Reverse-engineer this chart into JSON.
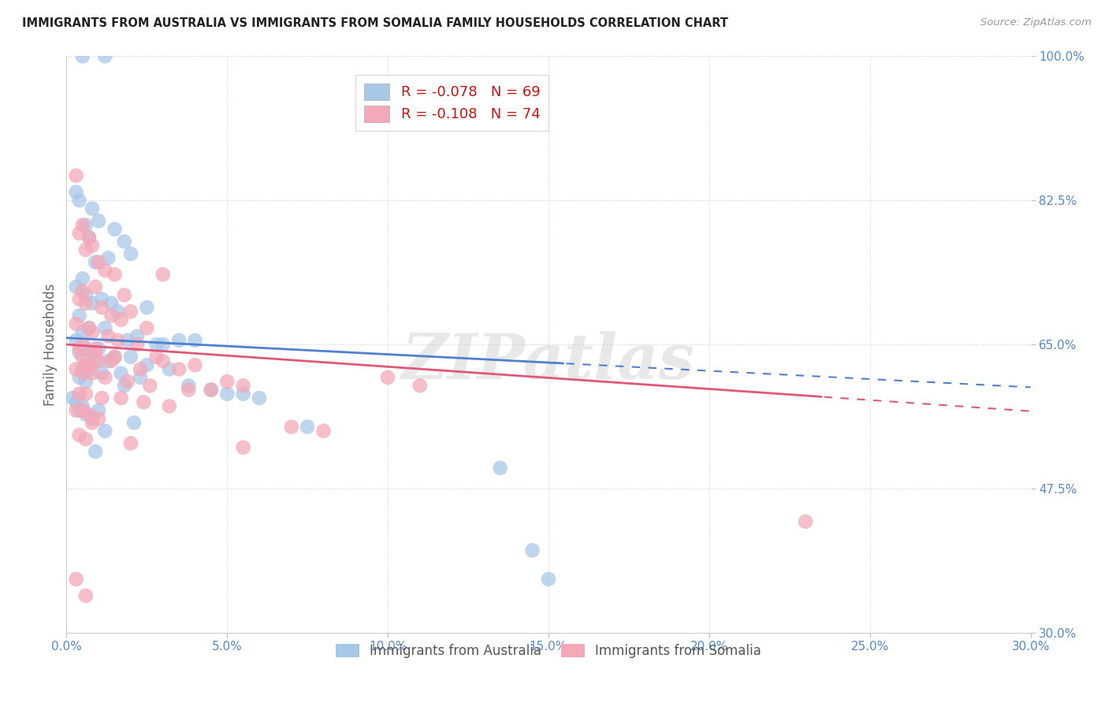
{
  "title": "IMMIGRANTS FROM AUSTRALIA VS IMMIGRANTS FROM SOMALIA FAMILY HOUSEHOLDS CORRELATION CHART",
  "source": "Source: ZipAtlas.com",
  "ylabel": "Family Households",
  "xmin": 0.0,
  "xmax": 30.0,
  "ymin": 30.0,
  "ymax": 100.0,
  "yticks": [
    30.0,
    47.5,
    65.0,
    82.5,
    100.0
  ],
  "ytick_labels": [
    "30.0%",
    "47.5%",
    "65.0%",
    "82.5%",
    "100.0%"
  ],
  "xtick_labels": [
    "0.0%",
    "5.0%",
    "10.0%",
    "15.0%",
    "20.0%",
    "25.0%",
    "30.0%"
  ],
  "blue_color": "#A8C8E8",
  "pink_color": "#F4A8B8",
  "blue_line_color": "#5080D0",
  "pink_line_color": "#E05878",
  "axis_label_color": "#5588CC",
  "grid_color": "#DDDDDD",
  "watermark": "ZIPatlas",
  "legend_blue_label": "Immigrants from Australia",
  "legend_pink_label": "Immigrants from Somalia",
  "R_blue": -0.078,
  "N_blue": 69,
  "R_pink": -0.108,
  "N_pink": 74,
  "blue_x": [
    0.5,
    1.2,
    0.3,
    0.4,
    0.8,
    1.0,
    0.6,
    1.5,
    0.7,
    1.8,
    2.0,
    1.3,
    0.9,
    0.5,
    0.3,
    0.6,
    1.1,
    0.8,
    1.4,
    2.5,
    1.6,
    0.4,
    0.7,
    1.2,
    0.5,
    2.2,
    1.9,
    0.3,
    3.0,
    2.8,
    3.5,
    4.0,
    0.6,
    1.0,
    0.4,
    0.8,
    1.5,
    2.0,
    0.9,
    1.3,
    2.5,
    3.2,
    0.5,
    0.7,
    1.1,
    1.7,
    2.3,
    0.4,
    0.6,
    1.8,
    3.8,
    4.5,
    5.0,
    5.5,
    6.0,
    0.2,
    0.3,
    0.5,
    0.4,
    1.0,
    0.6,
    0.8,
    2.1,
    7.5,
    1.2,
    0.9,
    13.5,
    14.5,
    15.0
  ],
  "blue_y": [
    100.0,
    100.0,
    83.5,
    82.5,
    81.5,
    80.0,
    79.5,
    79.0,
    78.0,
    77.5,
    76.0,
    75.5,
    75.0,
    73.0,
    72.0,
    71.0,
    70.5,
    70.0,
    70.0,
    69.5,
    69.0,
    68.5,
    67.0,
    67.0,
    66.5,
    66.0,
    65.5,
    65.5,
    65.0,
    65.0,
    65.5,
    65.5,
    64.5,
    64.5,
    64.0,
    64.0,
    63.5,
    63.5,
    63.0,
    63.0,
    62.5,
    62.0,
    62.0,
    62.0,
    61.5,
    61.5,
    61.0,
    61.0,
    60.5,
    60.0,
    60.0,
    59.5,
    59.0,
    59.0,
    58.5,
    58.5,
    58.0,
    57.5,
    57.0,
    57.0,
    56.5,
    56.0,
    55.5,
    55.0,
    54.5,
    52.0,
    50.0,
    40.0,
    36.5
  ],
  "pink_x": [
    0.3,
    0.5,
    0.4,
    0.7,
    0.6,
    0.8,
    1.0,
    1.2,
    1.5,
    0.9,
    1.8,
    0.5,
    0.4,
    0.6,
    1.1,
    2.0,
    1.4,
    1.7,
    0.3,
    2.5,
    0.7,
    0.8,
    1.3,
    1.6,
    2.2,
    0.5,
    0.4,
    0.9,
    2.8,
    3.0,
    1.0,
    1.5,
    0.6,
    0.7,
    2.3,
    3.5,
    4.0,
    0.3,
    0.5,
    0.8,
    1.2,
    1.9,
    2.6,
    3.8,
    4.5,
    5.0,
    5.5,
    0.4,
    0.6,
    1.1,
    1.7,
    2.4,
    3.2,
    0.3,
    0.5,
    0.7,
    1.0,
    0.8,
    7.0,
    8.0,
    0.4,
    0.6,
    2.0,
    5.5,
    3.0,
    1.4,
    0.9,
    0.5,
    0.7,
    10.0,
    11.0,
    0.3,
    23.0,
    0.6
  ],
  "pink_y": [
    85.5,
    79.5,
    78.5,
    78.0,
    76.5,
    77.0,
    75.0,
    74.0,
    73.5,
    72.0,
    71.0,
    71.5,
    70.5,
    70.0,
    69.5,
    69.0,
    68.5,
    68.0,
    67.5,
    67.0,
    67.0,
    66.5,
    66.0,
    65.5,
    65.0,
    65.0,
    64.5,
    64.0,
    63.5,
    63.0,
    63.0,
    63.5,
    62.5,
    62.5,
    62.0,
    62.0,
    62.5,
    62.0,
    61.5,
    61.5,
    61.0,
    60.5,
    60.0,
    59.5,
    59.5,
    60.5,
    60.0,
    59.0,
    59.0,
    58.5,
    58.5,
    58.0,
    57.5,
    57.0,
    57.0,
    56.5,
    56.0,
    55.5,
    55.0,
    54.5,
    54.0,
    53.5,
    53.0,
    52.5,
    73.5,
    63.0,
    64.5,
    63.5,
    62.5,
    61.0,
    60.0,
    36.5,
    43.5,
    34.5
  ]
}
